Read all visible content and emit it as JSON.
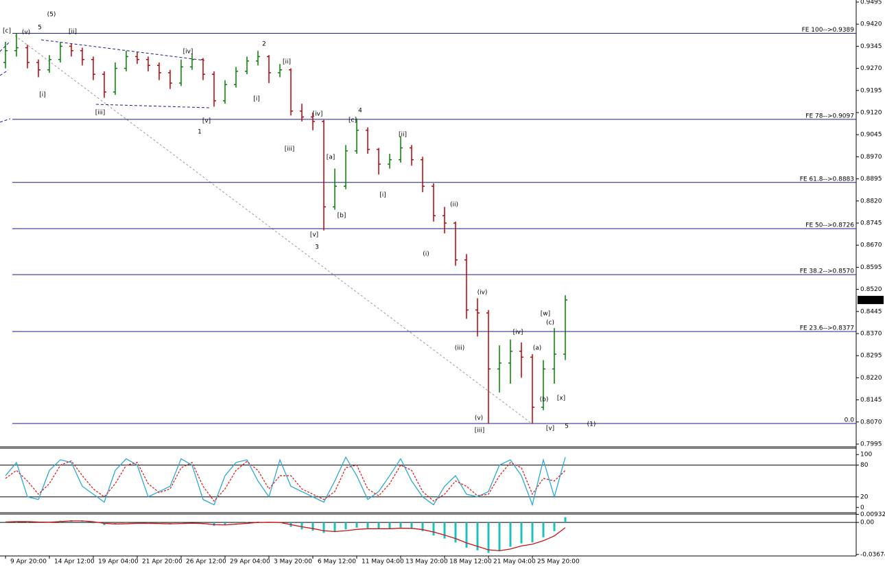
{
  "chart_data": [
    {
      "type": "ohlc",
      "categories": [
        "9 Apr 20:00",
        null,
        null,
        null,
        "14 Apr 12:00",
        null,
        null,
        null,
        "19 Apr 04:00",
        null,
        null,
        null,
        "21 Apr 20:00",
        null,
        null,
        null,
        "26 Apr 12:00",
        null,
        null,
        null,
        "29 Apr 04:00",
        null,
        null,
        null,
        "3 May 20:00",
        null,
        null,
        null,
        "6 May 12:00",
        null,
        null,
        null,
        "11 May 04:00",
        null,
        null,
        null,
        "13 May 20:00",
        null,
        null,
        null,
        "18 May 12:00",
        null,
        null,
        null,
        "21 May 04:00",
        null,
        null,
        null,
        "25 May 20:00",
        null,
        null,
        null
      ],
      "open": [
        0.929,
        0.933,
        0.934,
        0.929,
        0.9265,
        0.93,
        0.9345,
        0.933,
        0.93,
        0.925,
        0.919,
        0.927,
        0.931,
        0.93,
        0.928,
        0.9255,
        0.922,
        0.9275,
        0.93,
        0.925,
        0.916,
        0.9215,
        0.926,
        0.9295,
        0.931,
        0.9255,
        0.9265,
        0.9125,
        0.9105,
        0.909,
        0.88,
        0.887,
        0.899,
        0.906,
        0.8995,
        0.8945,
        0.896,
        0.9,
        0.896,
        0.887,
        0.877,
        0.8745,
        0.862,
        0.845,
        0.844,
        0.825,
        0.827,
        0.831,
        0.829,
        0.812,
        0.825,
        0.83
      ],
      "high": [
        0.936,
        0.9389,
        0.935,
        0.93,
        0.9315,
        0.936,
        0.9355,
        0.934,
        0.931,
        0.926,
        0.929,
        0.933,
        0.9325,
        0.931,
        0.929,
        0.9265,
        0.93,
        0.932,
        0.9305,
        0.926,
        0.923,
        0.9275,
        0.931,
        0.933,
        0.9315,
        0.9285,
        0.927,
        0.915,
        0.912,
        0.9095,
        0.893,
        0.901,
        0.91,
        0.907,
        0.9,
        0.898,
        0.904,
        0.901,
        0.897,
        0.888,
        0.88,
        0.875,
        0.864,
        0.849,
        0.845,
        0.833,
        0.835,
        0.834,
        0.83,
        0.828,
        0.8389,
        0.85
      ],
      "low": [
        0.927,
        0.931,
        0.927,
        0.924,
        0.9255,
        0.929,
        0.931,
        0.928,
        0.923,
        0.917,
        0.918,
        0.926,
        0.9285,
        0.926,
        0.923,
        0.92,
        0.921,
        0.9265,
        0.923,
        0.914,
        0.915,
        0.9205,
        0.925,
        0.928,
        0.922,
        0.924,
        0.911,
        0.909,
        0.906,
        0.872,
        0.879,
        0.886,
        0.898,
        0.898,
        0.891,
        0.893,
        0.895,
        0.894,
        0.885,
        0.875,
        0.871,
        0.86,
        0.842,
        0.836,
        0.8065,
        0.817,
        0.82,
        0.822,
        0.8065,
        0.811,
        0.82,
        0.828
      ],
      "close": [
        0.933,
        0.934,
        0.929,
        0.9265,
        0.93,
        0.9345,
        0.933,
        0.93,
        0.925,
        0.919,
        0.927,
        0.931,
        0.93,
        0.928,
        0.9255,
        0.922,
        0.9275,
        0.93,
        0.925,
        0.916,
        0.9215,
        0.926,
        0.9295,
        0.931,
        0.9255,
        0.9265,
        0.9125,
        0.9105,
        0.909,
        0.88,
        0.887,
        0.899,
        0.906,
        0.8995,
        0.8945,
        0.896,
        0.9,
        0.896,
        0.887,
        0.877,
        0.8745,
        0.862,
        0.845,
        0.844,
        0.825,
        0.827,
        0.831,
        0.829,
        0.812,
        0.825,
        0.83,
        0.8484
      ],
      "up_color": "#008000",
      "down_color": "#c00000",
      "ylim": [
        0.7988,
        0.9502
      ],
      "yticks": [
        0.9495,
        {
          "value": 0.942,
          "label": "0.9420"
        },
        0.9345,
        {
          "value": 0.927,
          "label": "0.9270"
        },
        0.9195,
        {
          "value": 0.912,
          "label": "0.9120"
        },
        0.9045,
        {
          "value": 0.897,
          "label": "0.8970"
        },
        0.8895,
        {
          "value": 0.882,
          "label": "0.8820"
        },
        0.8745,
        {
          "value": 0.867,
          "label": "0.8670"
        },
        0.8595,
        {
          "value": 0.852,
          "label": "0.8520"
        },
        0.8445,
        {
          "value": 0.837,
          "label": "0.8370"
        },
        0.8295,
        {
          "value": 0.822,
          "label": "0.8220"
        },
        0.8145,
        {
          "value": 0.807,
          "label": "0.8070"
        },
        0.7995
      ],
      "levels": [
        {
          "value": 0.9389,
          "label": "FE 100-->0.9389"
        },
        {
          "value": 0.9097,
          "label": "FE 78-->0.9097"
        },
        {
          "value": 0.8883,
          "label": "FE 61.8-->0.8883"
        },
        {
          "value": 0.8726,
          "label": "FE 50-->0.8726"
        },
        {
          "value": 0.857,
          "label": "FE 38.2-->0.8570"
        },
        {
          "value": 0.8377,
          "label": "FE 23.6-->0.8377"
        },
        {
          "value": 0.8065,
          "label": "0.0"
        }
      ],
      "level_color": "#1a1a8c",
      "last_price": 0.8484,
      "annotations": [
        {
          "text": "(5)",
          "color": "#1a2a9c"
        },
        {
          "text": "5",
          "color": "#b22222"
        },
        {
          "text": "[c]",
          "color": "#2e7d32"
        },
        {
          "text": "(v)",
          "color": "#1a2a9c"
        },
        {
          "text": "[ii]",
          "color": "#2e7d32"
        },
        {
          "text": "[i]",
          "color": "#2e7d32"
        },
        {
          "text": "[iii]",
          "color": "#2e7d32"
        },
        {
          "text": "[iv]",
          "color": "#2e7d32"
        },
        {
          "text": "[v]",
          "color": "#2e7d32"
        },
        {
          "text": "1",
          "color": "#b22222"
        },
        {
          "text": "2",
          "color": "#b22222"
        },
        {
          "text": "[ii]",
          "color": "#2e7d32"
        },
        {
          "text": "[i]",
          "color": "#2e7d32"
        },
        {
          "text": "[iv]",
          "color": "#2e7d32"
        },
        {
          "text": "[iii]",
          "color": "#2e7d32"
        },
        {
          "text": "4",
          "color": "#b22222"
        },
        {
          "text": "[c]",
          "color": "#2e7d32"
        },
        {
          "text": "[a]",
          "color": "#2e7d32"
        },
        {
          "text": "[b]",
          "color": "#2e7d32"
        },
        {
          "text": "[v]",
          "color": "#2e7d32"
        },
        {
          "text": "3",
          "color": "#b22222"
        },
        {
          "text": "[ii]",
          "color": "#2e7d32"
        },
        {
          "text": "[i]",
          "color": "#2e7d32"
        },
        {
          "text": "(ii)",
          "color": "#1a2a9c"
        },
        {
          "text": "(i)",
          "color": "#1a2a9c"
        },
        {
          "text": "(iv)",
          "color": "#1a2a9c"
        },
        {
          "text": "(iii)",
          "color": "#1a2a9c"
        },
        {
          "text": "(v)",
          "color": "#1a2a9c"
        },
        {
          "text": "[iii]",
          "color": "#2e7d32"
        },
        {
          "text": "[iv]",
          "color": "#2e7d32"
        },
        {
          "text": "(a)",
          "color": "#1a2a9c"
        },
        {
          "text": "[w]",
          "color": "#2e7d32"
        },
        {
          "text": "(c)",
          "color": "#1a2a9c"
        },
        {
          "text": "(b)",
          "color": "#1a2a9c"
        },
        {
          "text": "[x]",
          "color": "#2e7d32"
        },
        {
          "text": "[v]",
          "color": "#2e7d32"
        },
        {
          "text": "5",
          "color": "#b22222"
        },
        {
          "text": "(1)",
          "color": "#1a2a9c"
        }
      ]
    },
    {
      "type": "line",
      "series": [
        {
          "color": "#2aa8d8",
          "values": [
            60,
            85,
            20,
            15,
            70,
            90,
            85,
            40,
            25,
            10,
            70,
            92,
            80,
            20,
            30,
            40,
            92,
            80,
            15,
            5,
            60,
            85,
            90,
            50,
            20,
            90,
            40,
            30,
            20,
            10,
            50,
            95,
            60,
            15,
            30,
            60,
            92,
            50,
            20,
            5,
            40,
            60,
            25,
            20,
            30,
            80,
            90,
            60,
            5,
            90,
            20,
            95
          ]
        },
        {
          "color": "#e02020",
          "dashed": true,
          "values": [
            55,
            70,
            50,
            25,
            45,
            80,
            88,
            60,
            35,
            20,
            45,
            80,
            85,
            45,
            28,
            35,
            75,
            85,
            40,
            12,
            35,
            70,
            87,
            70,
            35,
            60,
            60,
            35,
            25,
            15,
            30,
            75,
            80,
            35,
            22,
            45,
            80,
            70,
            30,
            12,
            25,
            50,
            40,
            22,
            25,
            60,
            85,
            75,
            25,
            55,
            50,
            70
          ]
        }
      ],
      "ylim": [
        -10,
        112
      ],
      "yticks": [
        100,
        80,
        20,
        0
      ],
      "levels": [
        80,
        20
      ]
    },
    {
      "type": "macd",
      "values": [
        0.001,
        0.0015,
        0.0005,
        -0.0005,
        0.0005,
        0.002,
        0.0025,
        0.0015,
        -0.001,
        -0.003,
        -0.002,
        -0.0005,
        0.0,
        -0.001,
        -0.0015,
        -0.002,
        -0.0005,
        0.0,
        -0.002,
        -0.004,
        -0.003,
        -0.001,
        0.0005,
        0.001,
        0.0,
        -0.0005,
        -0.005,
        -0.008,
        -0.0095,
        -0.012,
        -0.011,
        -0.008,
        -0.006,
        -0.0065,
        -0.0075,
        -0.007,
        -0.006,
        -0.007,
        -0.01,
        -0.015,
        -0.0185,
        -0.023,
        -0.029,
        -0.032,
        -0.035,
        -0.033,
        -0.028,
        -0.024,
        -0.023,
        -0.017,
        -0.01,
        0.006
      ],
      "color": "#20c0c0",
      "signal": {
        "color": "#d01010",
        "values": [
          0.0005,
          0.001,
          0.001,
          0.0005,
          0.0003,
          0.001,
          0.0018,
          0.0018,
          0.0008,
          -0.001,
          -0.0018,
          -0.0015,
          -0.001,
          -0.001,
          -0.0012,
          -0.0016,
          -0.0012,
          -0.0008,
          -0.0012,
          -0.0025,
          -0.0028,
          -0.002,
          -0.001,
          0.0,
          0.0002,
          0.0,
          -0.0025,
          -0.005,
          -0.007,
          -0.0095,
          -0.0105,
          -0.0095,
          -0.008,
          -0.0072,
          -0.0072,
          -0.0072,
          -0.0066,
          -0.0068,
          -0.0082,
          -0.011,
          -0.0145,
          -0.0185,
          -0.0235,
          -0.0275,
          -0.0315,
          -0.0325,
          -0.0305,
          -0.027,
          -0.025,
          -0.021,
          -0.0155,
          -0.006
        ]
      },
      "ylim": [
        -0.0385,
        0.0096
      ],
      "yticks": [
        0.00932,
        {
          "value": 0,
          "label": "0.00"
        },
        -0.03674
      ]
    }
  ]
}
